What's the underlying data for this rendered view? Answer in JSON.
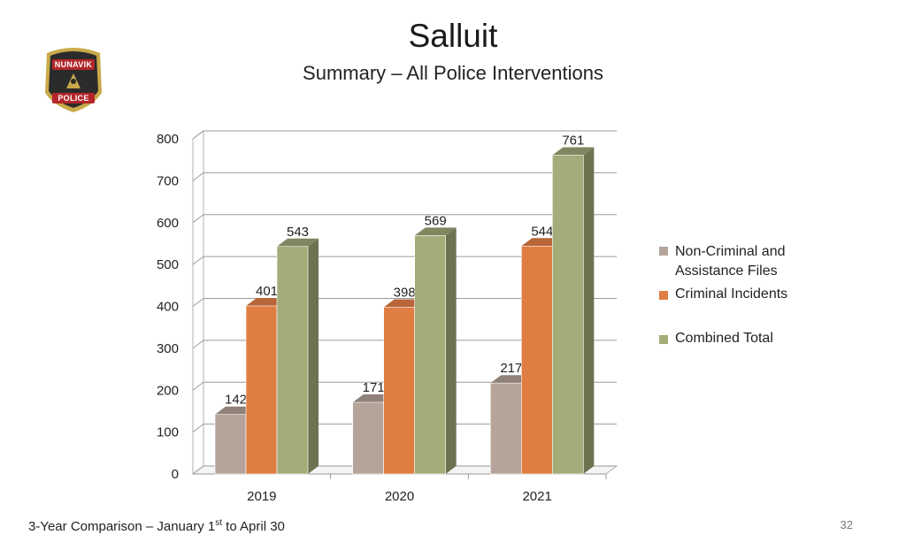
{
  "page": {
    "title": "Salluit",
    "subtitle": "Summary – All Police Interventions",
    "footer_prefix": "3-Year Comparison – January 1",
    "footer_sup": "st",
    "footer_suffix": " to April 30",
    "page_number": "32"
  },
  "logo": {
    "top_text": "NUNAVIK",
    "bottom_text": "POLICE",
    "colors": {
      "dark": "#2b2b2b",
      "gold": "#c9a94a",
      "red": "#b3262a"
    }
  },
  "chart_data": {
    "type": "bar",
    "style": "3d-clustered-column",
    "categories": [
      "2019",
      "2020",
      "2021"
    ],
    "series": [
      {
        "name": "Non-Criminal and Assistance Files",
        "values": [
          142,
          171,
          217
        ],
        "color": "#b5a49a",
        "side_color": "#7e726b",
        "top_color": "#8f8178"
      },
      {
        "name": "Criminal Incidents",
        "values": [
          401,
          398,
          544
        ],
        "color": "#e07d42",
        "side_color": "#9c562d",
        "top_color": "#b8653a"
      },
      {
        "name": "Combined Total",
        "values": [
          543,
          569,
          761
        ],
        "color": "#a4ad7a",
        "side_color": "#6c7350",
        "top_color": "#7f8760"
      }
    ],
    "y_ticks": [
      "0",
      "100",
      "200",
      "300",
      "400",
      "500",
      "600",
      "700",
      "800"
    ],
    "ylim": [
      0,
      800
    ],
    "grid": true,
    "legend_position": "right"
  }
}
